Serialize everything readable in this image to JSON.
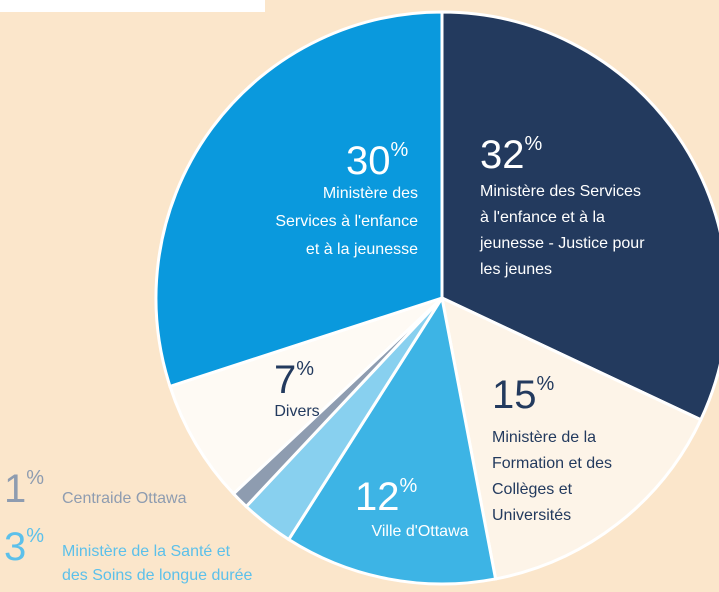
{
  "chart_data": {
    "type": "pie",
    "unit_symbol": "%",
    "categories": [
      [
        "Ministère des Services",
        "à l'enfance et à la",
        "jeunesse - Justice pour",
        "les jeunes"
      ],
      [
        "Ministère de la",
        "Formation et des",
        "Collèges et",
        "Universités"
      ],
      [
        "Ville d'Ottawa"
      ],
      [
        "Ministère de la Santé et",
        "des Soins de longue durée"
      ],
      [
        "Centraide Ottawa"
      ],
      [
        "Divers"
      ],
      [
        "Ministère des",
        "Services à l'enfance",
        "et à la jeunesse"
      ]
    ],
    "values": [
      32,
      15,
      12,
      3,
      1,
      7,
      30
    ],
    "colors": [
      "#233a5e",
      "#fdf4e8",
      "#3db4e5",
      "#88d0ef",
      "#8e9cb0",
      "#fefaf4",
      "#0a99dd"
    ],
    "label_colors": [
      "#ffffff",
      "#233a5e",
      "#ffffff",
      "#5cc0ea",
      "#8e9cb0",
      "#233a5e",
      "#ffffff"
    ]
  }
}
